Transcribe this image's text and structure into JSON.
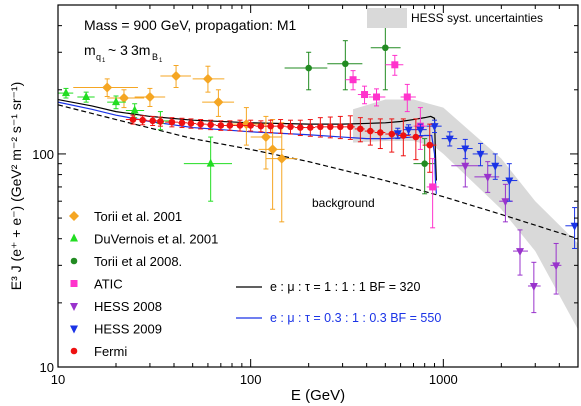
{
  "chart_data": {
    "type": "scatter",
    "title": "",
    "xlabel": "E (GeV)",
    "ylabel": "E³ J (e⁺ + e⁻) (GeV² m⁻² s⁻¹ sr⁻¹)",
    "x_scale": "log",
    "y_scale": "log",
    "xlim": [
      10,
      5000
    ],
    "ylim": [
      10,
      500
    ],
    "x_ticks": [
      {
        "value": 10,
        "label": "10"
      },
      {
        "value": 100,
        "label": "100"
      },
      {
        "value": 1000,
        "label": "1000"
      }
    ],
    "y_ticks": [
      {
        "value": 10,
        "label": "10"
      },
      {
        "value": 100,
        "label": "100"
      }
    ],
    "annotations": {
      "mass": "Mass = 900 GeV, propagation: M1",
      "mass_relation": "~ 3",
      "background": "background",
      "hess_syst": "HESS syst. uncertainties"
    },
    "colors": {
      "torii2001": "#f5a623",
      "duvernois": "#22dd22",
      "torii2008": "#228b22",
      "atic": "#ff33cc",
      "hess2008": "#9933cc",
      "hess2009": "#1a33e6",
      "fermi": "#ee1111",
      "model1": "#000000",
      "model2": "#1a33e6",
      "syst_band": "#d9d9d9"
    },
    "legend": {
      "position": "bottom-left",
      "entries": [
        {
          "label": "Torii et al. 2001",
          "marker": "diamond",
          "color": "#f5a623"
        },
        {
          "label": "DuVernois et al. 2001",
          "marker": "triangle-up",
          "color": "#22dd22"
        },
        {
          "label": "Torii et al 2008.",
          "marker": "circle",
          "color": "#228b22"
        },
        {
          "label": "ATIC",
          "marker": "square",
          "color": "#ff33cc"
        },
        {
          "label": "HESS 2008",
          "marker": "triangle-down",
          "color": "#9933cc"
        },
        {
          "label": "HESS 2009",
          "marker": "triangle-down",
          "color": "#1a33e6"
        },
        {
          "label": "Fermi",
          "marker": "circle",
          "color": "#ee1111"
        }
      ]
    },
    "model_legend": [
      {
        "label": "e : μ : τ = 1 : 1 : 1   BF = 320",
        "color": "#000000"
      },
      {
        "label": "e : μ : τ = 0.3 : 1 : 0.3   BF = 550",
        "color": "#1a33e6"
      }
    ],
    "series": [
      {
        "name": "Torii et al. 2001",
        "marker": "diamond",
        "color": "#f5a623",
        "points": [
          [
            18,
            205,
            12,
            26,
            186,
            225
          ],
          [
            22,
            183,
            18,
            28,
            165,
            200
          ],
          [
            30,
            185,
            25,
            36,
            167,
            203
          ],
          [
            41,
            232,
            34,
            49,
            205,
            260
          ],
          [
            60,
            225,
            50,
            73,
            195,
            258
          ],
          [
            68,
            175,
            56,
            82,
            150,
            200
          ],
          [
            95,
            138,
            75,
            120,
            110,
            165
          ],
          [
            120,
            120,
            100,
            145,
            85,
            150
          ],
          [
            130,
            105,
            110,
            150,
            55,
            145
          ],
          [
            145,
            95,
            120,
            175,
            48,
            140
          ]
        ]
      },
      {
        "name": "DuVernois et al. 2001",
        "marker": "triangle-up",
        "color": "#22dd22",
        "points": [
          [
            11,
            193,
            10,
            12,
            183,
            203
          ],
          [
            14,
            185,
            12.6,
            15.5,
            175,
            195
          ],
          [
            20,
            175,
            18,
            22.5,
            163,
            187
          ],
          [
            25,
            160,
            22.5,
            28,
            148,
            172
          ],
          [
            34,
            143,
            30,
            38,
            130,
            158
          ],
          [
            62,
            90,
            45,
            80,
            60,
            120
          ]
        ]
      },
      {
        "name": "Torii et al 2008.",
        "marker": "circle",
        "color": "#228b22",
        "points": [
          [
            200,
            253,
            150,
            250,
            200,
            300
          ],
          [
            310,
            265,
            250,
            380,
            200,
            340
          ],
          [
            500,
            315,
            420,
            600,
            200,
            420
          ],
          [
            800,
            90,
            700,
            900,
            65,
            118
          ]
        ]
      },
      {
        "name": "ATIC",
        "marker": "square",
        "color": "#ff33cc",
        "points": [
          [
            340,
            223,
            310,
            370,
            200,
            246
          ],
          [
            390,
            190,
            360,
            420,
            172,
            208
          ],
          [
            450,
            185,
            410,
            500,
            168,
            202
          ],
          [
            560,
            262,
            500,
            620,
            234,
            290
          ],
          [
            650,
            185,
            600,
            720,
            158,
            212
          ],
          [
            760,
            135,
            700,
            820,
            105,
            165
          ],
          [
            880,
            70,
            820,
            950,
            45,
            95
          ]
        ]
      },
      {
        "name": "HESS 2008",
        "marker": "triangle-down",
        "color": "#9933cc",
        "points": [
          [
            1300,
            88,
            1100,
            1550,
            70,
            106
          ],
          [
            1700,
            78,
            1450,
            1950,
            66,
            92
          ],
          [
            2100,
            60,
            1950,
            2300,
            48,
            72
          ],
          [
            2500,
            35,
            2300,
            2750,
            27,
            44
          ],
          [
            2950,
            24,
            2750,
            3200,
            18,
            31
          ],
          [
            3850,
            30,
            3600,
            4100,
            22,
            38
          ]
        ]
      },
      {
        "name": "HESS 2009",
        "marker": "triangle-down",
        "color": "#1a33e6",
        "points": [
          [
            580,
            125,
            540,
            620,
            118,
            132
          ],
          [
            660,
            130,
            620,
            700,
            123,
            137
          ],
          [
            760,
            130,
            700,
            820,
            122,
            138
          ],
          [
            900,
            135,
            820,
            980,
            126,
            144
          ],
          [
            1080,
            118,
            980,
            1180,
            109,
            127
          ],
          [
            1300,
            106,
            1180,
            1420,
            95,
            117
          ],
          [
            1560,
            100,
            1420,
            1700,
            88,
            112
          ],
          [
            1860,
            88,
            1700,
            2020,
            76,
            100
          ],
          [
            2200,
            75,
            2020,
            2420,
            60,
            90
          ],
          [
            4800,
            46,
            4300,
            5000,
            36,
            56
          ]
        ]
      },
      {
        "name": "Fermi",
        "marker": "circle",
        "color": "#ee1111",
        "points": [
          [
            24.5,
            145,
            22.5,
            26.5,
            138,
            152
          ],
          [
            27.5,
            144,
            26.5,
            29,
            137,
            151
          ],
          [
            31,
            143,
            29,
            33,
            136,
            150
          ],
          [
            34,
            142,
            33,
            35.5,
            135,
            149
          ],
          [
            39,
            141,
            36,
            42,
            134,
            148
          ],
          [
            44,
            140,
            42,
            47,
            133,
            147
          ],
          [
            49,
            139,
            47,
            52,
            132,
            146
          ],
          [
            55,
            138,
            52,
            59,
            131,
            145
          ],
          [
            62,
            137,
            59,
            66,
            130,
            144
          ],
          [
            70,
            136,
            66,
            75,
            129,
            143
          ],
          [
            78,
            136,
            75,
            83,
            129,
            143
          ],
          [
            88,
            136,
            83,
            94,
            128,
            144
          ],
          [
            100,
            136,
            94,
            106,
            128,
            144
          ],
          [
            113,
            135,
            106,
            120,
            127,
            143
          ],
          [
            127,
            135,
            120,
            136,
            126,
            144
          ],
          [
            143,
            135,
            136,
            152,
            125,
            145
          ],
          [
            161,
            134,
            152,
            170,
            124,
            144
          ],
          [
            181,
            133,
            170,
            192,
            122,
            144
          ],
          [
            204,
            133,
            192,
            216,
            121,
            145
          ],
          [
            230,
            134,
            216,
            243,
            120,
            148
          ],
          [
            259,
            134,
            243,
            273,
            119,
            149
          ],
          [
            292,
            134,
            273,
            308,
            118,
            150
          ],
          [
            329,
            134,
            308,
            347,
            117,
            151
          ],
          [
            371,
            131,
            347,
            391,
            114,
            148
          ],
          [
            418,
            128,
            391,
            440,
            110,
            146
          ],
          [
            471,
            126,
            440,
            500,
            106,
            146
          ],
          [
            540,
            124,
            500,
            580,
            102,
            146
          ],
          [
            620,
            122,
            580,
            670,
            98,
            146
          ],
          [
            720,
            120,
            670,
            780,
            94,
            146
          ],
          [
            850,
            110,
            780,
            920,
            82,
            138
          ]
        ]
      }
    ],
    "model_curves": [
      {
        "name": "e : μ : τ = 1 : 1 : 1   BF = 320",
        "color": "#000000",
        "points": [
          [
            10,
            180
          ],
          [
            15,
            168
          ],
          [
            20,
            158
          ],
          [
            30,
            150
          ],
          [
            50,
            144
          ],
          [
            100,
            140
          ],
          [
            200,
            138
          ],
          [
            300,
            138
          ],
          [
            400,
            139
          ],
          [
            500,
            140
          ],
          [
            600,
            142
          ],
          [
            700,
            145
          ],
          [
            800,
            148
          ],
          [
            860,
            150
          ],
          [
            900,
            147
          ],
          [
            910,
            100
          ],
          [
            920,
            75
          ]
        ]
      },
      {
        "name": "e : μ : τ = 0.3 : 1 : 0.3   BF = 550",
        "color": "#1a33e6",
        "points": [
          [
            10,
            175
          ],
          [
            15,
            162
          ],
          [
            20,
            152
          ],
          [
            30,
            142
          ],
          [
            50,
            133
          ],
          [
            100,
            127
          ],
          [
            200,
            123
          ],
          [
            300,
            120
          ],
          [
            400,
            118
          ],
          [
            500,
            118
          ],
          [
            600,
            119
          ],
          [
            700,
            120
          ],
          [
            800,
            122
          ],
          [
            870,
            122
          ],
          [
            900,
            100
          ],
          [
            910,
            75
          ],
          [
            920,
            65
          ]
        ]
      }
    ],
    "background_curve": {
      "name": "background",
      "color": "#000000",
      "points": [
        [
          10,
          170
        ],
        [
          20,
          145
        ],
        [
          50,
          118
        ],
        [
          100,
          105
        ],
        [
          200,
          92
        ],
        [
          500,
          75
        ],
        [
          1000,
          63
        ],
        [
          2000,
          52
        ],
        [
          5000,
          40
        ]
      ]
    },
    "syst_band": {
      "name": "HESS syst. uncertainties",
      "color": "#d9d9d9",
      "upper": [
        [
          340,
          162
        ],
        [
          500,
          180
        ],
        [
          700,
          180
        ],
        [
          1000,
          165
        ],
        [
          2000,
          95
        ],
        [
          3000,
          60
        ],
        [
          5000,
          38
        ]
      ],
      "lower": [
        [
          340,
          113
        ],
        [
          500,
          115
        ],
        [
          700,
          115
        ],
        [
          900,
          108
        ],
        [
          1000,
          100
        ],
        [
          2000,
          55
        ],
        [
          3000,
          35
        ],
        [
          5000,
          15
        ]
      ]
    }
  }
}
